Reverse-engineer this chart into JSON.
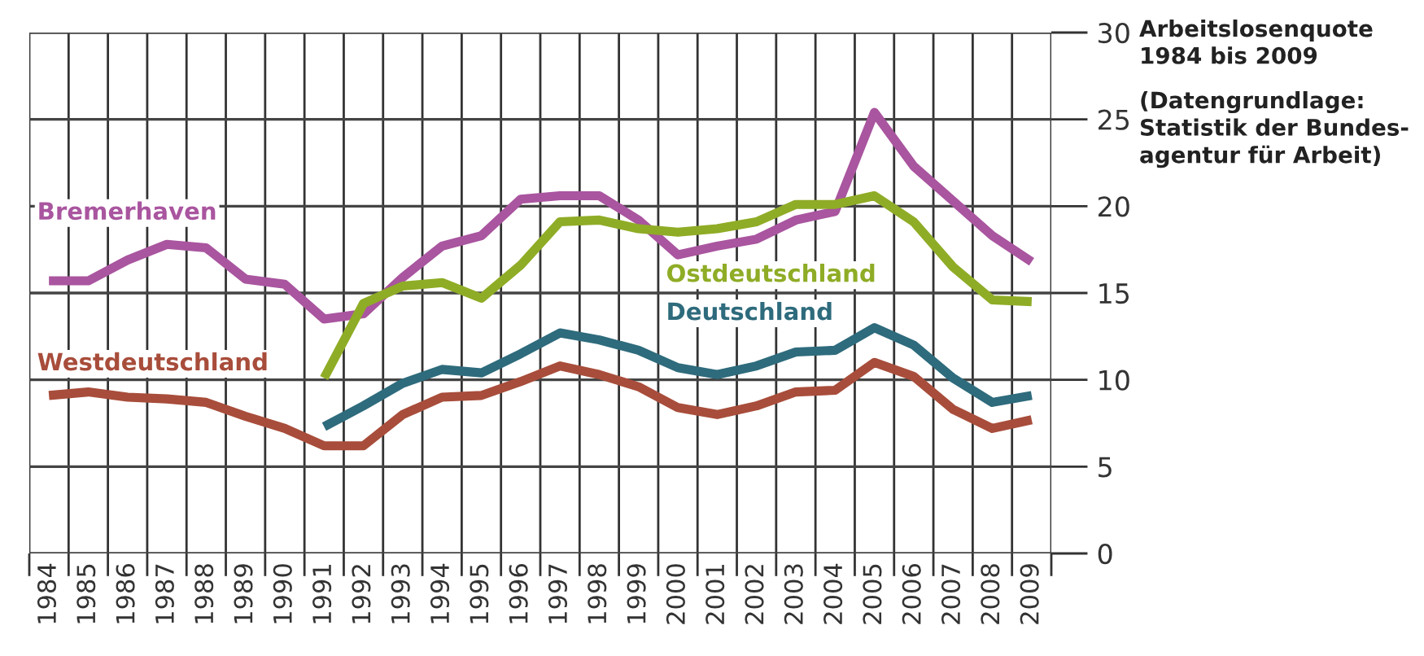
{
  "chart_data": {
    "type": "line",
    "title": "Arbeitslosenquote\n1984 bis 2009",
    "annotations": [
      "(Datengrundlage:\nStatistik der Bundes-\nagentur für Arbeit)"
    ],
    "categories": [
      "1984",
      "1985",
      "1986",
      "1987",
      "1988",
      "1989",
      "1990",
      "1991",
      "1992",
      "1993",
      "1994",
      "1995",
      "1996",
      "1997",
      "1998",
      "1999",
      "2000",
      "2001",
      "2002",
      "2003",
      "2004",
      "2005",
      "2006",
      "2007",
      "2008",
      "2009"
    ],
    "series": [
      {
        "name": "Bremerhaven",
        "color": "#a9559f",
        "values": [
          15.7,
          15.7,
          16.9,
          17.8,
          17.6,
          15.8,
          15.5,
          13.5,
          13.8,
          15.9,
          17.7,
          18.3,
          20.4,
          20.6,
          20.6,
          19.2,
          17.2,
          17.7,
          18.1,
          19.2,
          19.7,
          25.4,
          22.3,
          20.3,
          18.3,
          16.8
        ]
      },
      {
        "name": "Ostdeutschland",
        "color": "#8fac26",
        "values": [
          null,
          null,
          null,
          null,
          null,
          null,
          null,
          10.1,
          14.4,
          15.4,
          15.6,
          14.7,
          16.6,
          19.1,
          19.2,
          18.7,
          18.5,
          18.7,
          19.1,
          20.1,
          20.1,
          20.6,
          19.1,
          16.5,
          14.6,
          14.5
        ]
      },
      {
        "name": "Deutschland",
        "color": "#2e6b7c",
        "values": [
          null,
          null,
          null,
          null,
          null,
          null,
          null,
          7.3,
          8.5,
          9.8,
          10.6,
          10.4,
          11.5,
          12.7,
          12.3,
          11.7,
          10.7,
          10.3,
          10.8,
          11.6,
          11.7,
          13.0,
          12.0,
          10.1,
          8.7,
          9.1
        ]
      },
      {
        "name": "Westdeutschland",
        "color": "#a84d3b",
        "values": [
          9.1,
          9.3,
          9.0,
          8.9,
          8.7,
          7.9,
          7.2,
          6.2,
          6.2,
          8.0,
          9.0,
          9.1,
          9.9,
          10.8,
          10.3,
          9.6,
          8.4,
          8.0,
          8.5,
          9.3,
          9.4,
          11.0,
          10.2,
          8.3,
          7.2,
          7.7
        ]
      }
    ],
    "ylim": [
      0,
      30
    ],
    "yticks": [
      0,
      5,
      10,
      15,
      20,
      25,
      30
    ],
    "grid": true,
    "marker": "none",
    "line_style": "solid"
  }
}
